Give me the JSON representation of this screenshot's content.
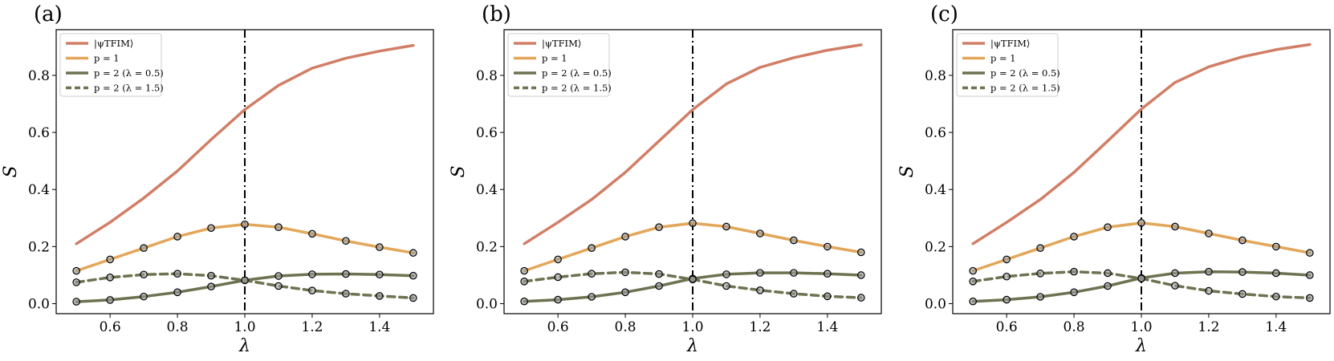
{
  "colors": {
    "tfim": "#d17e66",
    "p1": "#e2a75a",
    "p2": "#6b7350",
    "marker_fill": "#999999",
    "marker_edge": "#000000",
    "critical_line": "#000000"
  },
  "chart_data": [
    {
      "panel": "(a)",
      "type": "line",
      "xlabel": "λ",
      "ylabel": "S",
      "xlim": [
        0.44,
        1.56
      ],
      "ylim": [
        -0.035,
        0.96
      ],
      "xticks": [
        0.6,
        0.8,
        1.0,
        1.2,
        1.4
      ],
      "xtick_labels": [
        "0.6",
        "0.8",
        "1.0",
        "1.2",
        "1.4"
      ],
      "yticks": [
        0.0,
        0.2,
        0.4,
        0.6,
        0.8
      ],
      "ytick_labels": [
        "0.0",
        "0.2",
        "0.4",
        "0.6",
        "0.8"
      ],
      "vline": 1.0,
      "legend_position": "upper-left",
      "x": [
        0.5,
        0.6,
        0.7,
        0.8,
        0.9,
        1.0,
        1.1,
        1.2,
        1.3,
        1.4,
        1.5
      ],
      "series": [
        {
          "name": "|ψTFIM⟩",
          "style": "solid",
          "color_key": "tfim",
          "markers": false,
          "values": [
            0.21,
            0.285,
            0.37,
            0.465,
            0.575,
            0.68,
            0.765,
            0.825,
            0.86,
            0.885,
            0.905
          ]
        },
        {
          "name": "p = 1",
          "style": "solid",
          "color_key": "p1",
          "markers": true,
          "values": [
            0.115,
            0.155,
            0.195,
            0.235,
            0.265,
            0.278,
            0.268,
            0.245,
            0.22,
            0.198,
            0.178
          ]
        },
        {
          "name": "p = 2 (λ = 0.5)",
          "style": "solid",
          "color_key": "p2",
          "markers": true,
          "values": [
            0.007,
            0.013,
            0.025,
            0.04,
            0.06,
            0.082,
            0.097,
            0.103,
            0.104,
            0.102,
            0.098
          ]
        },
        {
          "name": "p = 2 (λ = 1.5)",
          "style": "dashed",
          "color_key": "p2",
          "markers": true,
          "values": [
            0.075,
            0.092,
            0.102,
            0.105,
            0.098,
            0.082,
            0.062,
            0.046,
            0.035,
            0.027,
            0.02
          ]
        }
      ]
    },
    {
      "panel": "(b)",
      "type": "line",
      "xlabel": "λ",
      "ylabel": "S",
      "xlim": [
        0.44,
        1.56
      ],
      "ylim": [
        -0.035,
        0.96
      ],
      "xticks": [
        0.6,
        0.8,
        1.0,
        1.2,
        1.4
      ],
      "xtick_labels": [
        "0.6",
        "0.8",
        "1.0",
        "1.2",
        "1.4"
      ],
      "yticks": [
        0.0,
        0.2,
        0.4,
        0.6,
        0.8
      ],
      "ytick_labels": [
        "0.0",
        "0.2",
        "0.4",
        "0.6",
        "0.8"
      ],
      "vline": 1.0,
      "legend_position": "upper-left",
      "x": [
        0.5,
        0.6,
        0.7,
        0.8,
        0.9,
        1.0,
        1.1,
        1.2,
        1.3,
        1.4,
        1.5
      ],
      "series": [
        {
          "name": "|ψTFIM⟩",
          "style": "solid",
          "color_key": "tfim",
          "markers": false,
          "values": [
            0.21,
            0.285,
            0.365,
            0.46,
            0.57,
            0.68,
            0.77,
            0.828,
            0.862,
            0.888,
            0.907
          ]
        },
        {
          "name": "p = 1",
          "style": "solid",
          "color_key": "p1",
          "markers": true,
          "values": [
            0.115,
            0.155,
            0.195,
            0.235,
            0.268,
            0.282,
            0.27,
            0.246,
            0.222,
            0.2,
            0.18
          ]
        },
        {
          "name": "p = 2 (λ = 0.5)",
          "style": "solid",
          "color_key": "p2",
          "markers": true,
          "values": [
            0.008,
            0.014,
            0.024,
            0.04,
            0.062,
            0.088,
            0.103,
            0.108,
            0.108,
            0.105,
            0.1
          ]
        },
        {
          "name": "p = 2 (λ = 1.5)",
          "style": "dashed",
          "color_key": "p2",
          "markers": true,
          "values": [
            0.078,
            0.093,
            0.105,
            0.11,
            0.104,
            0.085,
            0.062,
            0.047,
            0.035,
            0.026,
            0.021
          ]
        }
      ]
    },
    {
      "panel": "(c)",
      "type": "line",
      "xlabel": "λ",
      "ylabel": "S",
      "xlim": [
        0.44,
        1.56
      ],
      "ylim": [
        -0.035,
        0.96
      ],
      "xticks": [
        0.6,
        0.8,
        1.0,
        1.2,
        1.4
      ],
      "xtick_labels": [
        "0.6",
        "0.8",
        "1.0",
        "1.2",
        "1.4"
      ],
      "yticks": [
        0.0,
        0.2,
        0.4,
        0.6,
        0.8
      ],
      "ytick_labels": [
        "0.0",
        "0.2",
        "0.4",
        "0.6",
        "0.8"
      ],
      "vline": 1.0,
      "legend_position": "upper-left",
      "x": [
        0.5,
        0.6,
        0.7,
        0.8,
        0.9,
        1.0,
        1.1,
        1.2,
        1.3,
        1.4,
        1.5
      ],
      "series": [
        {
          "name": "|ψTFIM⟩",
          "style": "solid",
          "color_key": "tfim",
          "markers": false,
          "values": [
            0.21,
            0.285,
            0.365,
            0.46,
            0.57,
            0.682,
            0.775,
            0.83,
            0.865,
            0.89,
            0.908
          ]
        },
        {
          "name": "p = 1",
          "style": "solid",
          "color_key": "p1",
          "markers": true,
          "values": [
            0.115,
            0.155,
            0.195,
            0.235,
            0.268,
            0.283,
            0.27,
            0.246,
            0.222,
            0.2,
            0.178
          ]
        },
        {
          "name": "p = 2 (λ = 0.5)",
          "style": "solid",
          "color_key": "p2",
          "markers": true,
          "values": [
            0.008,
            0.014,
            0.024,
            0.04,
            0.062,
            0.09,
            0.107,
            0.112,
            0.111,
            0.107,
            0.1
          ]
        },
        {
          "name": "p = 2 (λ = 1.5)",
          "style": "dashed",
          "color_key": "p2",
          "markers": true,
          "values": [
            0.078,
            0.095,
            0.106,
            0.112,
            0.107,
            0.088,
            0.063,
            0.045,
            0.034,
            0.025,
            0.02
          ]
        }
      ]
    }
  ]
}
